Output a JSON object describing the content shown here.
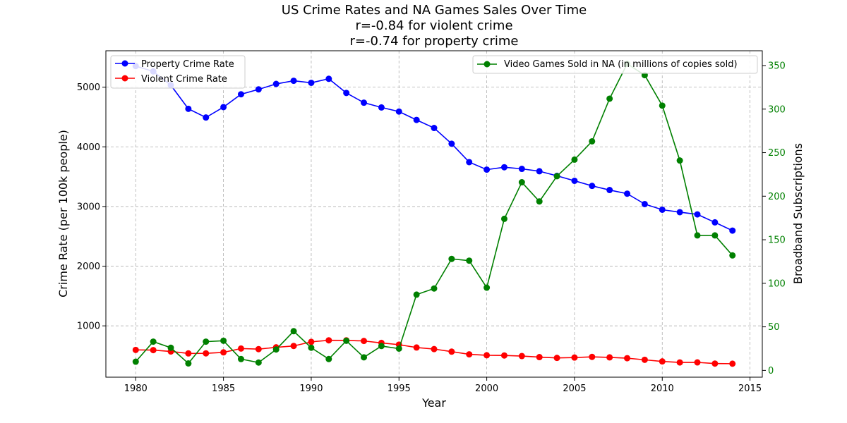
{
  "chart_data": {
    "type": "line",
    "title_lines": [
      "US Crime Rates and NA Games Sales Over Time",
      "r=-0.84 for violent crime",
      "r=-0.74 for property crime"
    ],
    "xlabel": "Year",
    "ylabel_left": "Crime Rate (per 100k people)",
    "ylabel_right": "Broadband Subscriptions",
    "x": [
      1980,
      1981,
      1982,
      1983,
      1984,
      1985,
      1986,
      1987,
      1988,
      1989,
      1990,
      1991,
      1992,
      1993,
      1994,
      1995,
      1996,
      1997,
      1998,
      1999,
      2000,
      2001,
      2002,
      2003,
      2004,
      2005,
      2006,
      2007,
      2008,
      2009,
      2010,
      2011,
      2012,
      2013,
      2014
    ],
    "xlim": [
      1978.3,
      2015.7
    ],
    "xticks": [
      1980,
      1985,
      1990,
      1995,
      2000,
      2005,
      2010,
      2015
    ],
    "ylim_left": [
      140,
      5610
    ],
    "yticks_left": [
      1000,
      2000,
      3000,
      4000,
      5000
    ],
    "ylim_right": [
      -7.8,
      367
    ],
    "yticks_right": [
      0,
      50,
      100,
      150,
      200,
      250,
      300,
      350
    ],
    "grid": true,
    "series_left": [
      {
        "name": "Property Crime Rate",
        "color": "#0000ff",
        "values": [
          5353,
          5264,
          5033,
          4637,
          4492,
          4666,
          4881,
          4963,
          5054,
          5107,
          5073,
          5140,
          4903,
          4740,
          4660,
          4591,
          4451,
          4316,
          4052,
          3744,
          3618,
          3658,
          3631,
          3591,
          3514,
          3431,
          3346,
          3276,
          3215,
          3041,
          2946,
          2905,
          2868,
          2734,
          2596
        ]
      },
      {
        "name": "Violent Crime Rate",
        "color": "#ff0000",
        "values": [
          597,
          594,
          571,
          538,
          539,
          556,
          620,
          610,
          640,
          663,
          732,
          758,
          757,
          747,
          714,
          685,
          637,
          611,
          568,
          523,
          507,
          504,
          494,
          476,
          463,
          469,
          480,
          472,
          458,
          431,
          404,
          387,
          388,
          368,
          366
        ]
      }
    ],
    "series_right": [
      {
        "name": "Video Games Sold in NA (in millions of copies sold)",
        "color": "#008000",
        "values": [
          10,
          33,
          26,
          8,
          33,
          34,
          13,
          9,
          24,
          45,
          26,
          13,
          34,
          15,
          28,
          25,
          87,
          94,
          128,
          126,
          95,
          174,
          216,
          194,
          223,
          242,
          263,
          312,
          352,
          339,
          304,
          241,
          155,
          155,
          132
        ]
      }
    ],
    "legend_left_placement": "upper-left",
    "legend_right_placement": "upper-right",
    "right_axis_color": "#008000"
  }
}
